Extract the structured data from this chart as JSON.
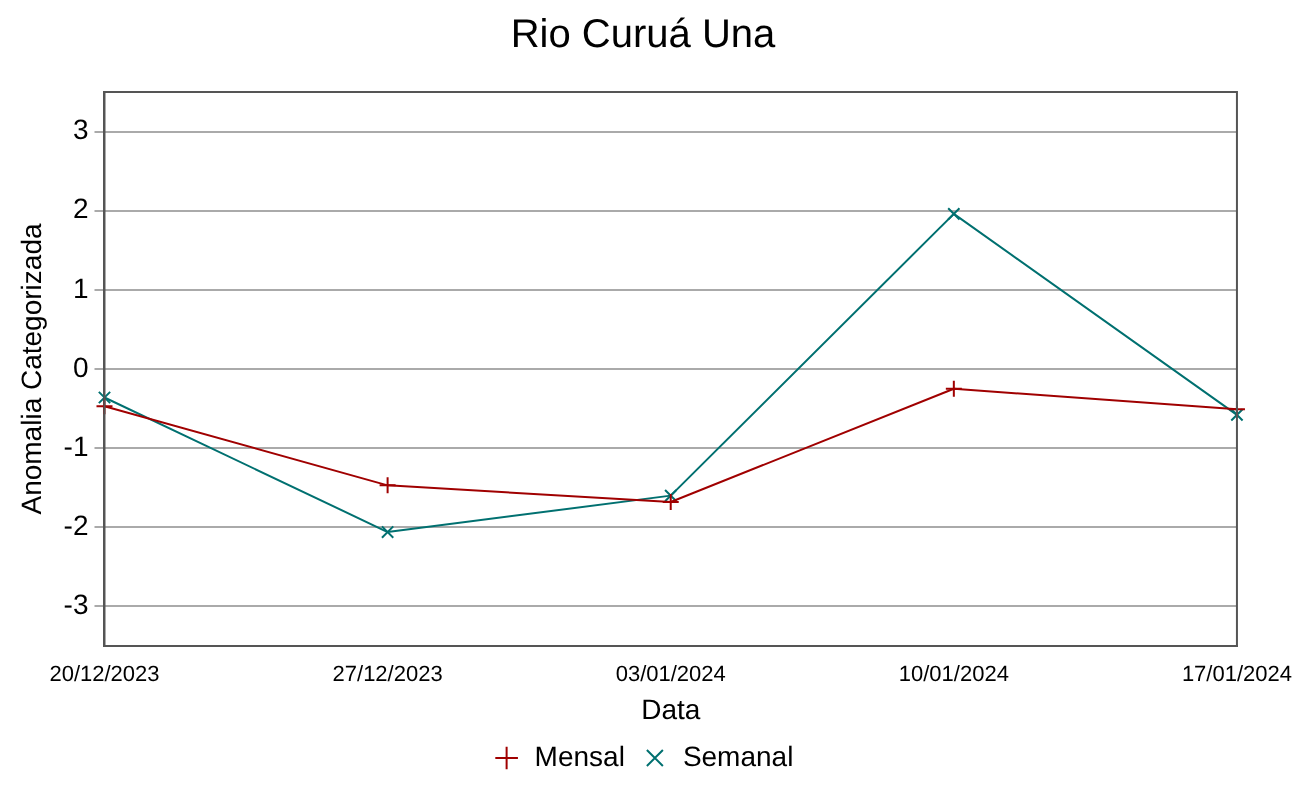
{
  "chart_data": {
    "type": "line",
    "title": "Rio Curuá Una",
    "xlabel": "Data",
    "ylabel": "Anomalia Categorizada",
    "categories": [
      "20/12/2023",
      "27/12/2023",
      "03/01/2024",
      "10/01/2024",
      "17/01/2024"
    ],
    "series": [
      {
        "name": "Mensal",
        "color": "#a00000",
        "marker": "cross",
        "values": [
          -0.47,
          -1.47,
          -1.68,
          -0.25,
          -0.51
        ]
      },
      {
        "name": "Semanal",
        "color": "#007070",
        "marker": "x",
        "values": [
          -0.36,
          -2.06,
          -1.6,
          1.96,
          -0.58
        ]
      }
    ],
    "ylim": [
      -3.5,
      3.5
    ],
    "yticks": [
      -3,
      -2,
      -1,
      0,
      1,
      2,
      3
    ],
    "grid": "y",
    "legend": "bottom",
    "line_style": "solid"
  }
}
